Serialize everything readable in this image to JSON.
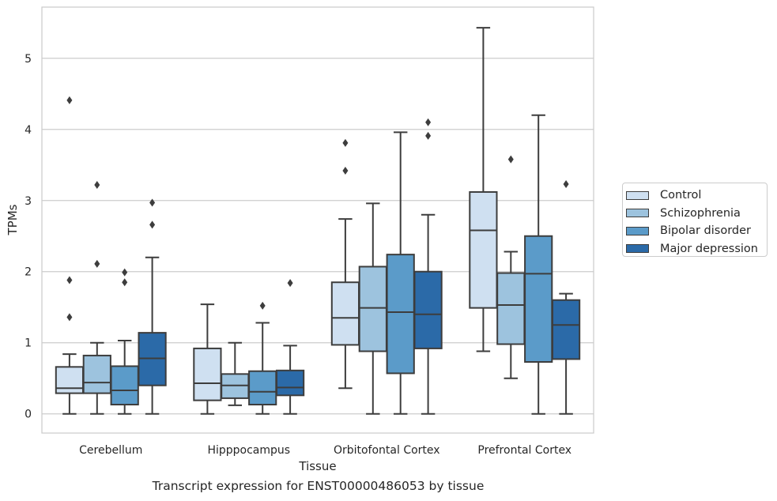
{
  "caption": "Transcript expression for ENST00000486053 by tissue",
  "chart_data": {
    "type": "boxplot",
    "xlabel": "Tissue",
    "ylabel": "TPMs",
    "categories": [
      "Cerebellum",
      "Hipppocampus",
      "Orbitofontal Cortex",
      "Prefrontal Cortex"
    ],
    "ylim": [
      -0.27,
      5.72
    ],
    "yticks": [
      0,
      1,
      2,
      3,
      4,
      5
    ],
    "grid": "horizontal",
    "legend_position": "right",
    "series": [
      {
        "name": "Control",
        "color": "#cfe0f1",
        "boxes": [
          {
            "whislo": 0,
            "q1": 0.29,
            "med": 0.36,
            "q3": 0.66,
            "whishi": 0.84,
            "fliers": [
              1.36,
              1.88,
              4.41
            ]
          },
          {
            "whislo": 0,
            "q1": 0.19,
            "med": 0.43,
            "q3": 0.92,
            "whishi": 1.54,
            "fliers": []
          },
          {
            "whislo": 0.36,
            "q1": 0.97,
            "med": 1.35,
            "q3": 1.85,
            "whishi": 2.74,
            "fliers": [
              3.42,
              3.81
            ]
          },
          {
            "whislo": 0.88,
            "q1": 1.49,
            "med": 2.58,
            "q3": 3.12,
            "whishi": 5.43,
            "fliers": []
          }
        ]
      },
      {
        "name": "Schizophrenia",
        "color": "#9dc3de",
        "boxes": [
          {
            "whislo": 0,
            "q1": 0.29,
            "med": 0.44,
            "q3": 0.82,
            "whishi": 1.0,
            "fliers": [
              2.11,
              3.22
            ]
          },
          {
            "whislo": 0.12,
            "q1": 0.22,
            "med": 0.4,
            "q3": 0.56,
            "whishi": 1.0,
            "fliers": []
          },
          {
            "whislo": 0,
            "q1": 0.88,
            "med": 1.49,
            "q3": 2.07,
            "whishi": 2.96,
            "fliers": []
          },
          {
            "whislo": 0.5,
            "q1": 0.98,
            "med": 1.53,
            "q3": 1.98,
            "whishi": 2.28,
            "fliers": [
              3.58
            ]
          }
        ]
      },
      {
        "name": "Bipolar disorder",
        "color": "#5b9bc9",
        "boxes": [
          {
            "whislo": 0,
            "q1": 0.13,
            "med": 0.33,
            "q3": 0.67,
            "whishi": 1.03,
            "fliers": [
              1.85,
              1.99
            ]
          },
          {
            "whislo": 0,
            "q1": 0.13,
            "med": 0.31,
            "q3": 0.6,
            "whishi": 1.28,
            "fliers": [
              1.52
            ]
          },
          {
            "whislo": 0,
            "q1": 0.57,
            "med": 1.43,
            "q3": 2.24,
            "whishi": 3.96,
            "fliers": []
          },
          {
            "whislo": 0,
            "q1": 0.73,
            "med": 1.97,
            "q3": 2.5,
            "whishi": 4.2,
            "fliers": []
          }
        ]
      },
      {
        "name": "Major depression",
        "color": "#2b6aa8",
        "boxes": [
          {
            "whislo": 0,
            "q1": 0.4,
            "med": 0.78,
            "q3": 1.14,
            "whishi": 2.2,
            "fliers": [
              2.66,
              2.97
            ]
          },
          {
            "whislo": 0,
            "q1": 0.26,
            "med": 0.37,
            "q3": 0.61,
            "whishi": 0.96,
            "fliers": [
              1.84
            ]
          },
          {
            "whislo": 0,
            "q1": 0.92,
            "med": 1.4,
            "q3": 2.0,
            "whishi": 2.8,
            "fliers": [
              3.91,
              4.1
            ]
          },
          {
            "whislo": 0,
            "q1": 0.77,
            "med": 1.25,
            "q3": 1.6,
            "whishi": 1.69,
            "fliers": [
              3.23
            ]
          }
        ]
      }
    ]
  }
}
